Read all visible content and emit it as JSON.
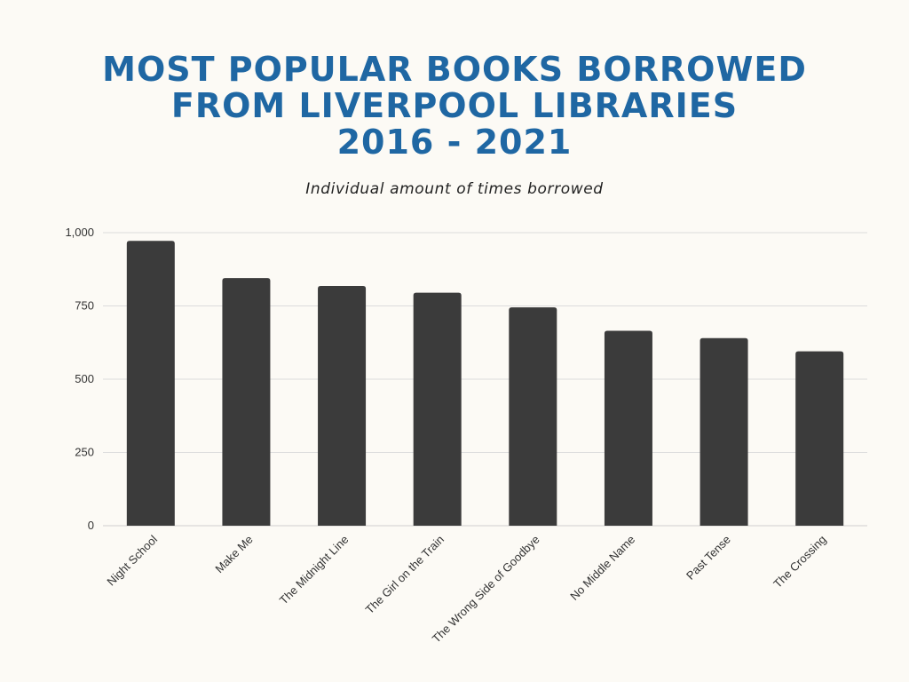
{
  "title_lines": [
    "Most popular books borrowed",
    "from Liverpool libraries",
    "2016 - 2021"
  ],
  "subtitle": "Individual amount of times borrowed",
  "colors": {
    "background": "#fcfaf5",
    "title": "#1f67a3",
    "bar": "#3b3b3b",
    "grid": "#dcdcdc"
  },
  "chart_data": {
    "type": "bar",
    "categories": [
      "Night School",
      "Make Me",
      "The Midnight Line",
      "The Girl on the Train",
      "The Wrong Side of Goodbye",
      "No Middle Name",
      "Past Tense",
      "The Crossing"
    ],
    "values": [
      972,
      845,
      818,
      795,
      745,
      665,
      640,
      595
    ],
    "ylim": [
      0,
      1000
    ],
    "yticks": [
      0,
      250,
      500,
      750,
      1000
    ],
    "ytick_labels": [
      "0",
      "250",
      "500",
      "750",
      "1,000"
    ],
    "grid": true
  }
}
